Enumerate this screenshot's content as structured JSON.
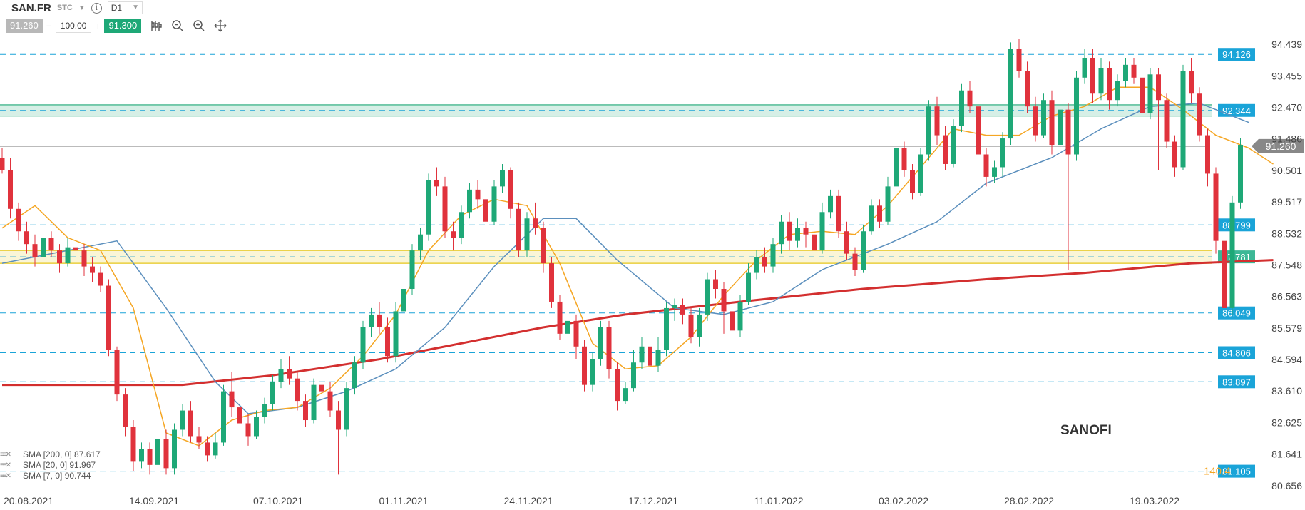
{
  "header": {
    "symbol": "SAN.FR",
    "type": "STC",
    "timeframe": "D1"
  },
  "trade": {
    "bid": "91.260",
    "ask": "91.300",
    "quantity": "100.00",
    "minus": "−",
    "plus": "+"
  },
  "watermark": "SANOFI",
  "legend": [
    {
      "label": "SMA [200, 0] 87.617",
      "color": "#d32f2f"
    },
    {
      "label": "SMA [20, 0] 91.967",
      "color": "#5b8fbd"
    },
    {
      "label": "SMA [7, 0] 90.744",
      "color": "#f5a623"
    }
  ],
  "colors": {
    "up": "#1ea877",
    "down": "#e0323c",
    "guide": "#1aa4d8",
    "price_line": "#777777"
  },
  "chart_data": {
    "type": "candlestick",
    "ylim": [
      80.45,
      95.2
    ],
    "y_ticks": [
      "94.439",
      "93.455",
      "92.470",
      "91.486",
      "90.501",
      "89.517",
      "88.532",
      "87.548",
      "86.563",
      "85.579",
      "84.594",
      "83.610",
      "82.625",
      "81.641",
      "80.656"
    ],
    "x_labels": [
      "20.08.2021",
      "14.09.2021",
      "07.10.2021",
      "01.11.2021",
      "24.11.2021",
      "17.12.2021",
      "11.01.2022",
      "03.02.2022",
      "28.02.2022",
      "19.03.2022"
    ],
    "horizontal_levels": [
      "94.126",
      "88.799",
      "86.049",
      "84.806",
      "83.897",
      "81.105"
    ],
    "zones": [
      {
        "label": "92.344",
        "low": 92.2,
        "high": 92.55,
        "color": "#1ea877"
      },
      {
        "label": "87.781",
        "low": 87.6,
        "high": 88.0,
        "color": "#e6c619"
      }
    ],
    "last_price": "91.260",
    "extra_label": "140.4",
    "candles": [
      [
        90.9,
        90.5,
        91.2,
        90.4
      ],
      [
        90.5,
        89.3,
        90.9,
        89.0
      ],
      [
        89.3,
        88.6,
        89.5,
        88.3
      ],
      [
        88.6,
        88.2,
        88.9,
        87.9
      ],
      [
        88.2,
        87.8,
        88.5,
        87.5
      ],
      [
        87.8,
        88.4,
        88.6,
        87.7
      ],
      [
        88.4,
        88.0,
        88.6,
        87.8
      ],
      [
        88.0,
        87.6,
        88.2,
        87.3
      ],
      [
        87.6,
        88.1,
        88.4,
        87.5
      ],
      [
        88.1,
        88.0,
        88.7,
        87.8
      ],
      [
        88.0,
        87.5,
        88.2,
        87.2
      ],
      [
        87.5,
        87.3,
        87.8,
        87.0
      ],
      [
        87.3,
        86.9,
        87.5,
        86.7
      ],
      [
        86.9,
        84.9,
        87.1,
        84.7
      ],
      [
        84.9,
        83.5,
        85.0,
        83.3
      ],
      [
        83.5,
        82.5,
        83.7,
        82.2
      ],
      [
        82.5,
        81.4,
        82.7,
        81.1
      ],
      [
        81.4,
        81.8,
        82.0,
        81.2
      ],
      [
        81.8,
        81.3,
        82.0,
        81.0
      ],
      [
        81.3,
        82.1,
        82.3,
        81.1
      ],
      [
        82.1,
        81.2,
        82.4,
        81.0
      ],
      [
        81.2,
        82.4,
        82.6,
        81.0
      ],
      [
        82.4,
        83.0,
        83.2,
        82.2
      ],
      [
        83.0,
        82.2,
        83.3,
        82.0
      ],
      [
        82.2,
        82.0,
        82.5,
        81.8
      ],
      [
        82.0,
        81.6,
        82.2,
        81.4
      ],
      [
        81.6,
        82.0,
        82.3,
        81.5
      ],
      [
        82.0,
        83.6,
        83.8,
        81.9
      ],
      [
        83.6,
        83.1,
        84.2,
        82.8
      ],
      [
        83.1,
        82.6,
        83.4,
        82.4
      ],
      [
        82.6,
        82.2,
        82.9,
        81.9
      ],
      [
        82.2,
        82.8,
        83.0,
        82.1
      ],
      [
        82.8,
        83.2,
        83.4,
        82.6
      ],
      [
        83.2,
        83.9,
        84.1,
        83.0
      ],
      [
        83.9,
        84.3,
        84.6,
        83.7
      ],
      [
        84.3,
        84.0,
        84.7,
        83.8
      ],
      [
        84.0,
        83.3,
        84.2,
        83.0
      ],
      [
        83.3,
        82.7,
        83.5,
        82.5
      ],
      [
        82.7,
        83.8,
        84.0,
        82.6
      ],
      [
        83.8,
        83.6,
        84.1,
        83.4
      ],
      [
        83.6,
        83.0,
        83.9,
        82.8
      ],
      [
        83.0,
        82.4,
        83.3,
        81.0
      ],
      [
        82.4,
        83.7,
        83.9,
        82.2
      ],
      [
        83.7,
        84.5,
        84.7,
        83.5
      ],
      [
        84.5,
        85.6,
        85.8,
        84.3
      ],
      [
        85.6,
        86.0,
        86.2,
        85.3
      ],
      [
        86.0,
        85.6,
        86.4,
        85.4
      ],
      [
        85.6,
        84.7,
        85.9,
        84.5
      ],
      [
        84.7,
        86.1,
        86.4,
        84.5
      ],
      [
        86.1,
        86.8,
        87.0,
        85.9
      ],
      [
        86.8,
        88.0,
        88.2,
        86.6
      ],
      [
        88.0,
        88.5,
        88.7,
        87.7
      ],
      [
        88.5,
        90.2,
        90.4,
        88.3
      ],
      [
        90.2,
        90.0,
        90.6,
        89.7
      ],
      [
        90.0,
        88.6,
        90.3,
        88.4
      ],
      [
        88.6,
        88.4,
        88.9,
        88.0
      ],
      [
        88.4,
        89.2,
        89.4,
        88.2
      ],
      [
        89.2,
        89.9,
        90.1,
        89.0
      ],
      [
        89.9,
        89.6,
        90.2,
        89.3
      ],
      [
        89.6,
        88.9,
        89.8,
        88.6
      ],
      [
        88.9,
        90.0,
        90.2,
        88.8
      ],
      [
        90.0,
        90.5,
        90.7,
        89.8
      ],
      [
        90.5,
        89.3,
        90.6,
        89.0
      ],
      [
        89.3,
        88.0,
        89.5,
        87.8
      ],
      [
        88.0,
        89.0,
        89.2,
        87.8
      ],
      [
        89.0,
        88.7,
        89.5,
        88.5
      ],
      [
        88.7,
        87.6,
        88.9,
        87.3
      ],
      [
        87.6,
        86.4,
        87.8,
        86.2
      ],
      [
        86.4,
        85.4,
        86.6,
        85.2
      ],
      [
        85.4,
        85.8,
        86.0,
        85.2
      ],
      [
        85.8,
        85.0,
        86.0,
        84.6
      ],
      [
        85.0,
        83.8,
        85.2,
        83.6
      ],
      [
        83.8,
        84.6,
        84.8,
        83.6
      ],
      [
        84.6,
        85.6,
        85.8,
        84.4
      ],
      [
        85.6,
        84.3,
        85.8,
        84.0
      ],
      [
        84.3,
        83.3,
        84.5,
        83.0
      ],
      [
        83.3,
        83.7,
        83.9,
        83.2
      ],
      [
        83.7,
        84.5,
        84.9,
        83.6
      ],
      [
        84.5,
        85.0,
        85.3,
        84.3
      ],
      [
        85.0,
        84.4,
        85.2,
        84.2
      ],
      [
        84.4,
        84.9,
        85.3,
        84.2
      ],
      [
        84.9,
        86.2,
        86.4,
        84.7
      ],
      [
        86.2,
        86.3,
        86.5,
        85.8
      ],
      [
        86.3,
        86.0,
        86.5,
        85.7
      ],
      [
        86.0,
        85.3,
        86.2,
        85.1
      ],
      [
        85.3,
        86.0,
        86.2,
        85.0
      ],
      [
        86.0,
        87.1,
        87.3,
        85.8
      ],
      [
        87.1,
        86.8,
        87.4,
        86.5
      ],
      [
        86.8,
        86.1,
        87.0,
        85.4
      ],
      [
        86.1,
        85.5,
        86.3,
        84.9
      ],
      [
        85.5,
        86.4,
        86.6,
        85.3
      ],
      [
        86.4,
        87.3,
        87.6,
        86.3
      ],
      [
        87.3,
        87.8,
        88.0,
        87.1
      ],
      [
        87.8,
        87.5,
        88.1,
        87.3
      ],
      [
        87.5,
        88.2,
        88.4,
        87.3
      ],
      [
        88.2,
        88.9,
        89.1,
        87.9
      ],
      [
        88.9,
        88.3,
        89.2,
        88.0
      ],
      [
        88.3,
        88.7,
        89.0,
        88.1
      ],
      [
        88.7,
        88.5,
        88.9,
        88.1
      ],
      [
        88.5,
        88.0,
        88.7,
        87.8
      ],
      [
        88.0,
        89.2,
        89.5,
        87.9
      ],
      [
        89.2,
        89.7,
        89.9,
        89.0
      ],
      [
        89.7,
        88.6,
        89.9,
        88.4
      ],
      [
        88.6,
        87.9,
        88.9,
        87.7
      ],
      [
        87.9,
        87.4,
        88.1,
        87.2
      ],
      [
        87.4,
        88.6,
        88.8,
        87.3
      ],
      [
        88.6,
        89.4,
        89.6,
        88.5
      ],
      [
        89.4,
        88.9,
        89.6,
        88.7
      ],
      [
        88.9,
        90.0,
        90.3,
        88.8
      ],
      [
        90.0,
        91.2,
        91.5,
        89.8
      ],
      [
        91.2,
        90.5,
        91.4,
        90.3
      ],
      [
        90.5,
        89.8,
        90.7,
        89.6
      ],
      [
        89.8,
        91.0,
        91.2,
        89.7
      ],
      [
        91.0,
        92.5,
        92.7,
        90.8
      ],
      [
        92.5,
        91.6,
        92.8,
        91.3
      ],
      [
        91.6,
        90.7,
        91.9,
        90.5
      ],
      [
        90.7,
        91.9,
        92.1,
        90.6
      ],
      [
        91.9,
        93.0,
        93.2,
        91.7
      ],
      [
        93.0,
        92.5,
        93.3,
        92.3
      ],
      [
        92.5,
        91.0,
        92.8,
        90.8
      ],
      [
        91.0,
        90.3,
        91.2,
        90.0
      ],
      [
        90.3,
        90.6,
        90.8,
        90.1
      ],
      [
        90.6,
        91.5,
        91.7,
        90.3
      ],
      [
        91.5,
        94.3,
        94.5,
        91.3
      ],
      [
        94.3,
        93.6,
        94.6,
        93.4
      ],
      [
        93.6,
        92.5,
        93.9,
        92.3
      ],
      [
        92.5,
        91.6,
        92.8,
        91.4
      ],
      [
        91.6,
        92.7,
        92.9,
        91.5
      ],
      [
        92.7,
        91.3,
        93.0,
        91.0
      ],
      [
        91.3,
        92.4,
        92.6,
        91.2
      ],
      [
        92.4,
        91.0,
        92.6,
        87.4
      ],
      [
        91.0,
        93.4,
        93.6,
        90.8
      ],
      [
        93.4,
        94.0,
        94.3,
        93.2
      ],
      [
        94.0,
        92.9,
        94.3,
        92.6
      ],
      [
        92.9,
        93.7,
        94.0,
        92.7
      ],
      [
        93.7,
        92.7,
        93.9,
        92.4
      ],
      [
        92.7,
        93.3,
        93.5,
        92.5
      ],
      [
        93.3,
        93.8,
        94.0,
        93.1
      ],
      [
        93.8,
        93.4,
        94.0,
        93.2
      ],
      [
        93.4,
        92.3,
        93.6,
        92.0
      ],
      [
        92.3,
        93.5,
        93.7,
        92.1
      ],
      [
        93.5,
        92.7,
        93.7,
        90.5
      ],
      [
        92.7,
        91.4,
        92.9,
        91.2
      ],
      [
        91.4,
        90.6,
        91.6,
        90.3
      ],
      [
        90.6,
        93.6,
        93.8,
        90.5
      ],
      [
        93.6,
        92.9,
        94.0,
        92.6
      ],
      [
        92.9,
        91.6,
        93.1,
        91.4
      ],
      [
        91.6,
        90.4,
        91.8,
        90.0
      ],
      [
        90.4,
        88.3,
        90.6,
        87.9
      ],
      [
        88.3,
        86.2,
        89.1,
        84.8
      ],
      [
        86.2,
        89.5,
        89.7,
        86.0
      ],
      [
        89.5,
        91.3,
        91.5,
        89.3
      ]
    ],
    "sma200": [
      [
        0,
        83.8
      ],
      [
        22,
        83.8
      ],
      [
        33,
        84.1
      ],
      [
        46,
        84.6
      ],
      [
        56,
        85.1
      ],
      [
        66,
        85.6
      ],
      [
        76,
        86.0
      ],
      [
        90,
        86.4
      ],
      [
        105,
        86.8
      ],
      [
        120,
        87.1
      ],
      [
        132,
        87.3
      ],
      [
        145,
        87.6
      ],
      [
        155,
        87.7
      ]
    ],
    "sma20": [
      [
        0,
        87.6
      ],
      [
        8,
        88.0
      ],
      [
        14,
        88.3
      ],
      [
        20,
        86.2
      ],
      [
        26,
        83.9
      ],
      [
        30,
        82.9
      ],
      [
        36,
        83.1
      ],
      [
        42,
        83.6
      ],
      [
        48,
        84.3
      ],
      [
        54,
        85.6
      ],
      [
        60,
        87.5
      ],
      [
        66,
        89.0
      ],
      [
        70,
        89.0
      ],
      [
        75,
        87.7
      ],
      [
        82,
        86.2
      ],
      [
        88,
        86.0
      ],
      [
        94,
        86.4
      ],
      [
        100,
        87.4
      ],
      [
        108,
        88.2
      ],
      [
        114,
        88.9
      ],
      [
        120,
        90.1
      ],
      [
        128,
        90.9
      ],
      [
        134,
        91.8
      ],
      [
        140,
        92.5
      ],
      [
        146,
        92.6
      ],
      [
        152,
        92.0
      ]
    ],
    "sma7": [
      [
        0,
        88.7
      ],
      [
        4,
        89.4
      ],
      [
        8,
        88.4
      ],
      [
        12,
        88.0
      ],
      [
        16,
        86.2
      ],
      [
        20,
        82.3
      ],
      [
        24,
        81.9
      ],
      [
        28,
        82.7
      ],
      [
        32,
        83.0
      ],
      [
        36,
        83.1
      ],
      [
        40,
        83.7
      ],
      [
        44,
        84.7
      ],
      [
        48,
        86.0
      ],
      [
        52,
        88.0
      ],
      [
        56,
        89.1
      ],
      [
        60,
        89.6
      ],
      [
        64,
        89.4
      ],
      [
        68,
        87.6
      ],
      [
        72,
        85.1
      ],
      [
        76,
        84.3
      ],
      [
        80,
        84.4
      ],
      [
        84,
        85.3
      ],
      [
        88,
        86.6
      ],
      [
        92,
        87.7
      ],
      [
        96,
        88.5
      ],
      [
        100,
        88.6
      ],
      [
        104,
        88.5
      ],
      [
        108,
        89.4
      ],
      [
        112,
        90.6
      ],
      [
        116,
        91.8
      ],
      [
        120,
        91.6
      ],
      [
        124,
        91.6
      ],
      [
        128,
        92.2
      ],
      [
        132,
        92.5
      ],
      [
        136,
        93.1
      ],
      [
        140,
        93.1
      ],
      [
        144,
        92.4
      ],
      [
        148,
        91.6
      ],
      [
        152,
        91.2
      ],
      [
        155,
        90.7
      ]
    ]
  }
}
